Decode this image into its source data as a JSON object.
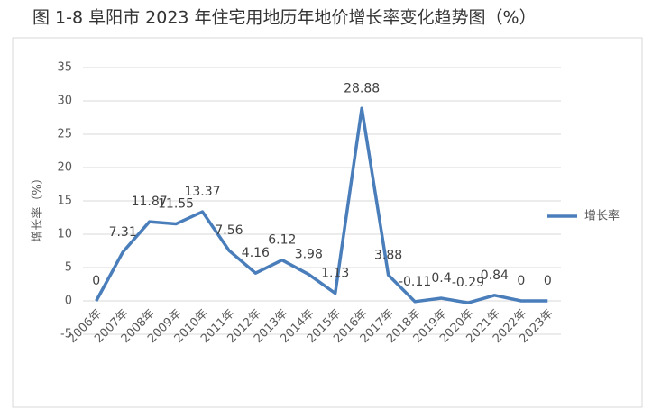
{
  "chart_data": {
    "type": "line",
    "title": "图 1-8 阜阳市 2023 年住宅用地历年地价增长率变化趋势图（%）",
    "y_label": "增长率（%）",
    "categories": [
      "2006年",
      "2007年",
      "2008年",
      "2009年",
      "2010年",
      "2011年",
      "2012年",
      "2013年",
      "2014年",
      "2015年",
      "2016年",
      "2017年",
      "2018年",
      "2019年",
      "2020年",
      "2021年",
      "2022年",
      "2023年"
    ],
    "series": [
      {
        "name": "增长率",
        "color": "#4a7ebb",
        "values": [
          0,
          7.31,
          11.87,
          11.55,
          13.37,
          7.56,
          4.16,
          6.12,
          3.98,
          1.13,
          28.88,
          3.88,
          -0.11,
          0.4,
          -0.29,
          0.84,
          0,
          0
        ]
      }
    ],
    "ylim": [
      -5,
      35
    ],
    "yticks": [
      -5,
      0,
      5,
      10,
      15,
      20,
      25,
      30,
      35
    ],
    "grid": true,
    "legend": "right"
  }
}
